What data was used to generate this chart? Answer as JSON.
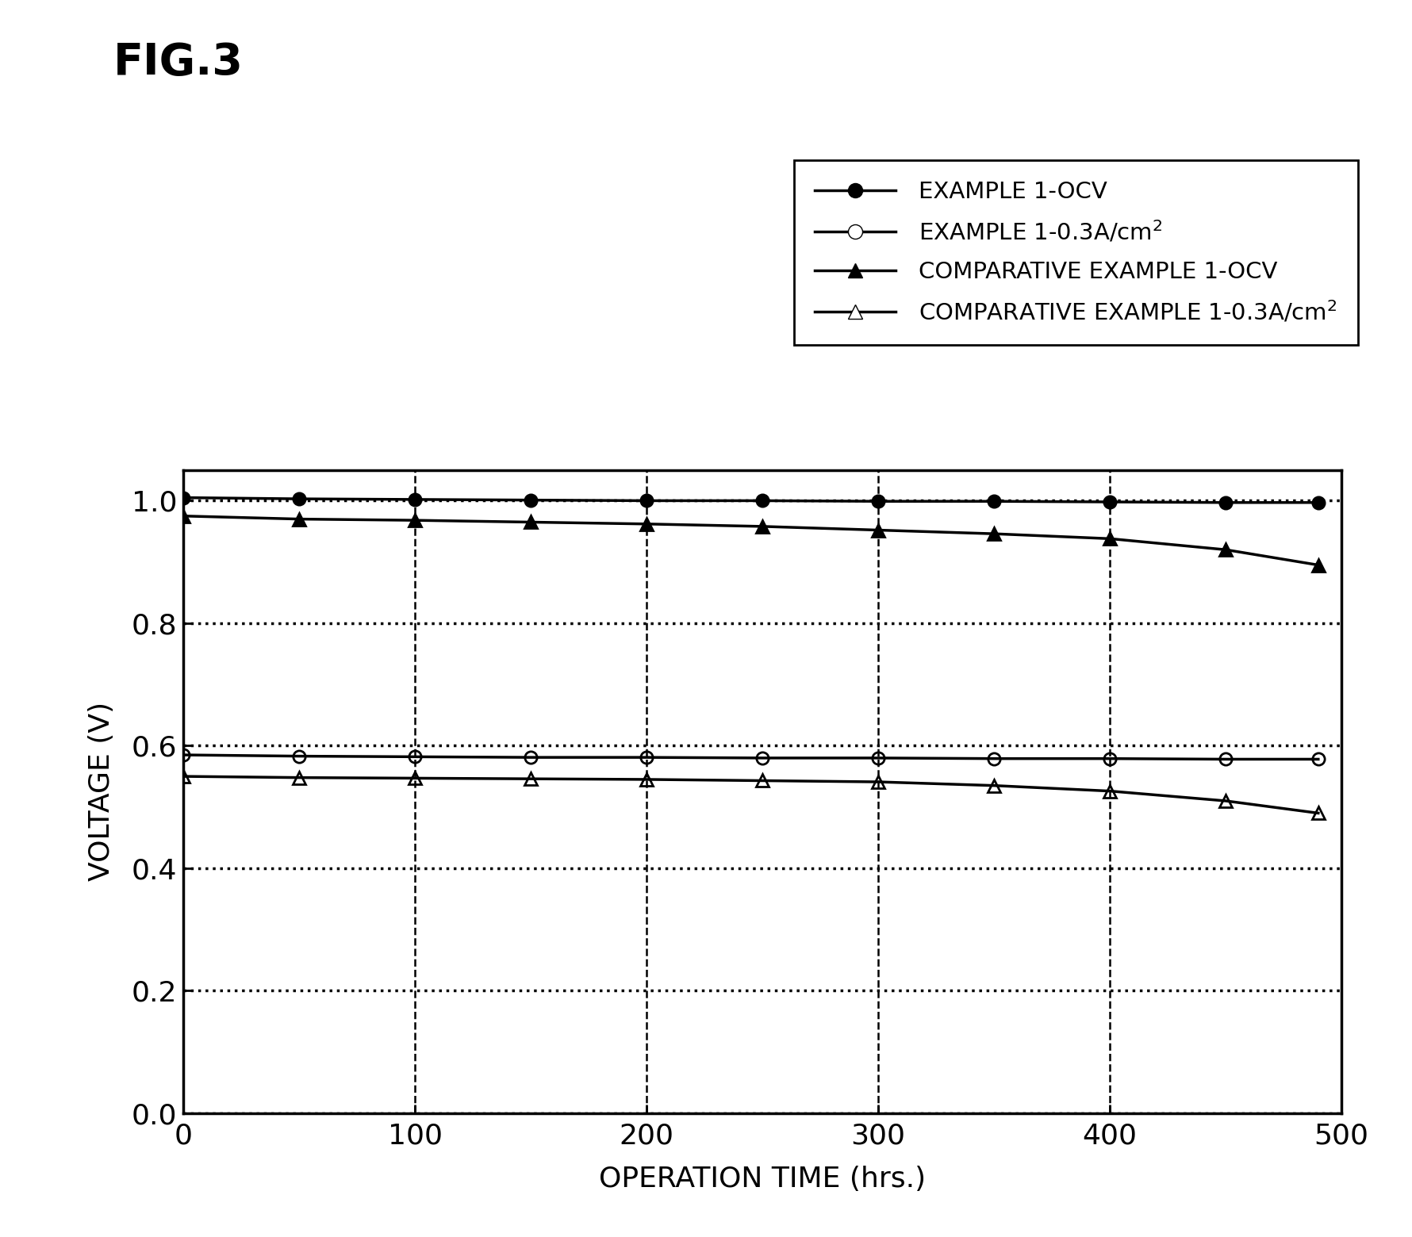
{
  "title": "FIG.3",
  "xlabel": "OPERATION TIME (hrs.)",
  "ylabel": "VOLTAGE (V)",
  "xlim": [
    0,
    500
  ],
  "ylim": [
    0.0,
    1.05
  ],
  "xticks": [
    0,
    100,
    200,
    300,
    400,
    500
  ],
  "yticks": [
    0.0,
    0.2,
    0.4,
    0.6,
    0.8,
    1.0
  ],
  "series": {
    "ex1_ocv": {
      "label": "EXAMPLE 1-OCV",
      "x": [
        0,
        50,
        100,
        150,
        200,
        250,
        300,
        350,
        400,
        450,
        490
      ],
      "y": [
        1.005,
        1.003,
        1.002,
        1.001,
        1.0,
        1.0,
        0.999,
        0.999,
        0.998,
        0.997,
        0.997
      ],
      "marker": "o",
      "fillstyle": "full",
      "linewidth": 2.5,
      "markersize": 11
    },
    "ex1_03a": {
      "label": "EXAMPLE 1-0.3A/cm$^2$",
      "x": [
        0,
        50,
        100,
        150,
        200,
        250,
        300,
        350,
        400,
        450,
        490
      ],
      "y": [
        0.585,
        0.583,
        0.582,
        0.581,
        0.581,
        0.58,
        0.58,
        0.579,
        0.579,
        0.578,
        0.578
      ],
      "marker": "o",
      "fillstyle": "none",
      "linewidth": 2.5,
      "markersize": 11
    },
    "comp_ocv": {
      "label": "COMPARATIVE EXAMPLE 1-OCV",
      "x": [
        0,
        50,
        100,
        150,
        200,
        250,
        300,
        350,
        400,
        450,
        490
      ],
      "y": [
        0.975,
        0.97,
        0.968,
        0.965,
        0.962,
        0.958,
        0.952,
        0.946,
        0.938,
        0.92,
        0.895
      ],
      "marker": "^",
      "fillstyle": "full",
      "linewidth": 2.5,
      "markersize": 11
    },
    "comp_03a": {
      "label": "COMPARATIVE EXAMPLE 1-0.3A/cm$^2$",
      "x": [
        0,
        50,
        100,
        150,
        200,
        250,
        300,
        350,
        400,
        450,
        490
      ],
      "y": [
        0.55,
        0.548,
        0.547,
        0.546,
        0.545,
        0.543,
        0.541,
        0.535,
        0.526,
        0.51,
        0.49
      ],
      "marker": "^",
      "fillstyle": "none",
      "linewidth": 2.5,
      "markersize": 11
    }
  },
  "background_color": "#ffffff"
}
